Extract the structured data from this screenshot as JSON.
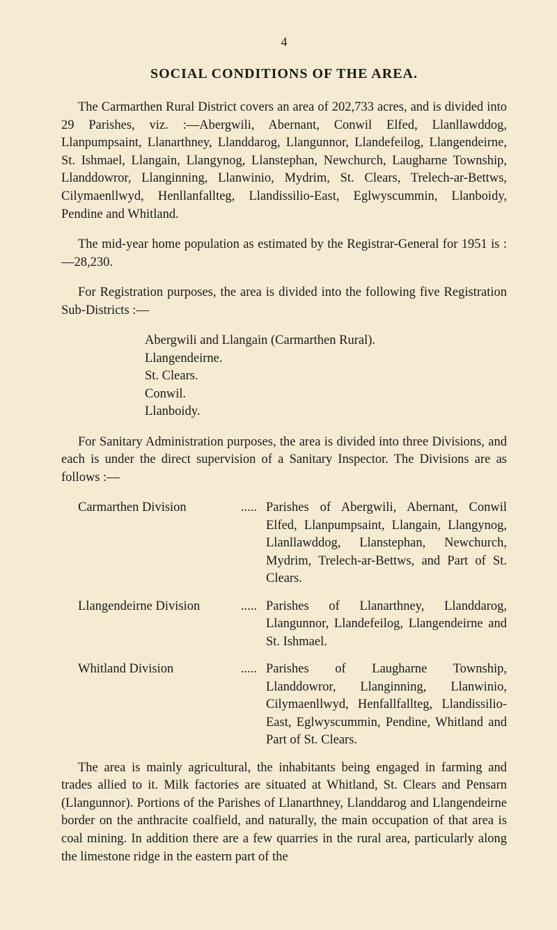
{
  "page_number": "4",
  "title": "SOCIAL CONDITIONS OF THE AREA.",
  "para1": "The Carmarthen Rural District covers an area of 202,733 acres, and is divided into 29 Parishes, viz. :—Abergwili, Abernant, Conwil Elfed, Llanllawddog, Llanpumpsaint, Llanarthney, Llanddarog, Llangunnor, Llandefeilog, Llangendeirne, St. Ishmael, Llangain, Llangynog, Llanstephan, Newchurch, Laugharne Township, Llan­ddowror, Llanginning, Llanwinio, Mydrim, St. Clears, Trelech-ar-Bettws, Cilymaenllwyd, Henllanfallteg, Llandissilio-East, Eglwys­cummin, Llanboidy, Pendine and Whitland.",
  "para2": "The mid-year home population as estimated by the Registrar-General for 1951 is :—28,230.",
  "para3": "For Registration purposes, the area is divided into the following five Registration Sub-Districts :—",
  "sublist": [
    "Abergwili and Llangain (Carmarthen Rural).",
    "Llangendeirne.",
    "St. Clears.",
    "Conwil.",
    "Llanboidy."
  ],
  "para4": "For Sanitary Administration purposes, the area is divided into three Divisions, and each is under the direct supervision of a Sanitary Inspector.  The Divisions are as follows :—",
  "divisions": [
    {
      "label": "Carmarthen Division",
      "content": "Parishes of Abergwili, Abernant, Conwil Elfed, Llanpumpsaint, Llan­gain, Llangynog, Llanllawddog, Llanstephan, Newchurch, Mydrim, Trelech-ar-Bettws, and Part of St. Clears."
    },
    {
      "label": "Llangendeirne Division",
      "content": "Parishes of Llanarthney, Llan­ddarog, Llangunnor, Llandefeilog, Llangendeirne and St. Ishmael."
    },
    {
      "label": "Whitland Division",
      "content": "Parishes of Laugharne Township, Llanddowror, Llanginning, Llan­winio, Cilymaenllwyd, Henfall­fallteg, Llandissilio-East, Eglwys­cummin, Pendine, Whitland and Part of St. Clears."
    }
  ],
  "dots": ".....",
  "para5": "The area is mainly agricultural, the inhabitants being engaged in farming and trades allied to it.  Milk factories are situated at Whitland, St. Clears and Pensarn (Llangunnor).  Portions of the Parishes of Llanarthney, Llanddarog and Llangendeirne border on the anthracite coalfield, and naturally, the main occupation of that area is coal mining.  In addition there are a few quarries in the rural area, particularly along the limestone ridge in the eastern part of the",
  "colors": {
    "background": "#f5ebd2",
    "text": "#1a1a1a"
  },
  "typography": {
    "body_fontsize": 18.5,
    "title_fontsize": 20,
    "font_family": "Georgia serif"
  }
}
